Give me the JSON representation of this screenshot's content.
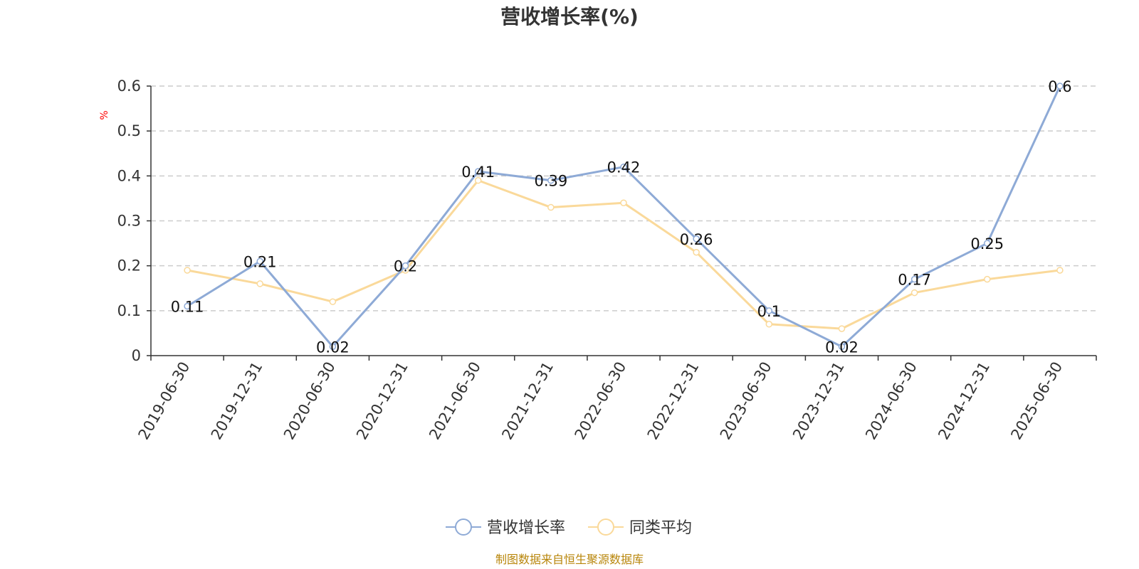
{
  "chart_data": {
    "type": "line",
    "title": "营收增长率(%)",
    "ylabel": "%",
    "xlabel": "",
    "ylim": [
      0,
      0.6
    ],
    "yticks": [
      0,
      0.1,
      0.2,
      0.3,
      0.4,
      0.5,
      0.6
    ],
    "grid": true,
    "legend_position": "bottom-center",
    "categories": [
      "2019-06-30",
      "2019-12-31",
      "2020-06-30",
      "2020-12-31",
      "2021-06-30",
      "2021-12-31",
      "2022-06-30",
      "2022-12-31",
      "2023-06-30",
      "2023-12-31",
      "2024-06-30",
      "2024-12-31",
      "2025-06-30"
    ],
    "series": [
      {
        "name": "营收增长率",
        "color": "#8eaad6",
        "values": [
          0.11,
          0.21,
          0.02,
          0.2,
          0.41,
          0.39,
          0.42,
          0.26,
          0.1,
          0.02,
          0.17,
          0.25,
          0.6
        ],
        "show_labels": true
      },
      {
        "name": "同类平均",
        "color": "#fad99a",
        "values": [
          0.19,
          0.16,
          0.12,
          0.19,
          0.39,
          0.33,
          0.34,
          0.23,
          0.07,
          0.06,
          0.14,
          0.17,
          0.19
        ],
        "show_labels": false
      }
    ],
    "source_note": "制图数据来自恒生聚源数据库"
  }
}
